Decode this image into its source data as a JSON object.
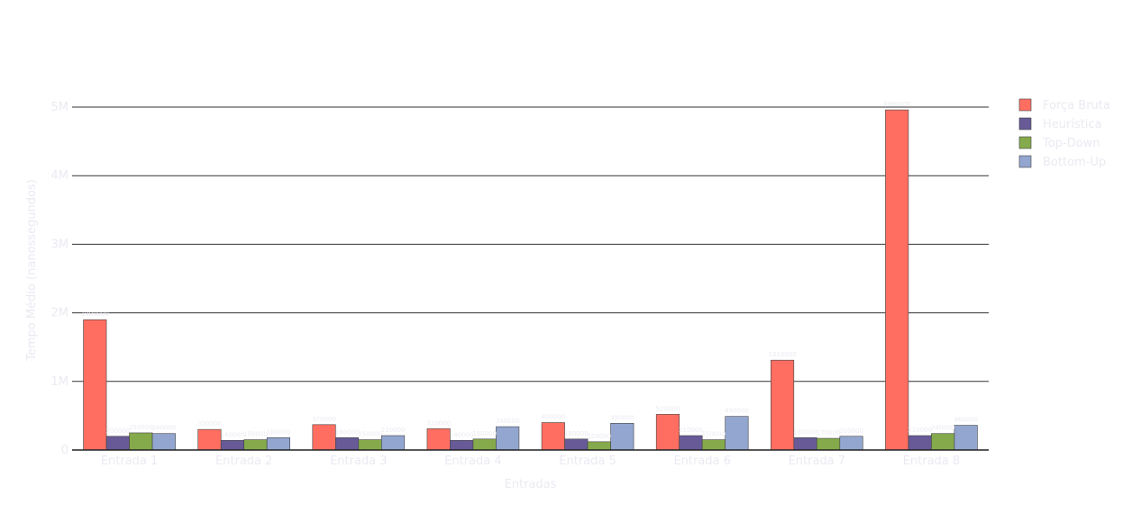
{
  "chart_data": {
    "type": "bar",
    "title": "",
    "xlabel": "Entradas",
    "ylabel": "Tempo Médio (nanossegundos)",
    "categories": [
      "Entrada 1",
      "Entrada 2",
      "Entrada 3",
      "Entrada 4",
      "Entrada 5",
      "Entrada 6",
      "Entrada 7",
      "Entrada 8"
    ],
    "ylim": [
      0,
      5250000
    ],
    "yticks": [
      {
        "value": 0,
        "label": "0"
      },
      {
        "value": 1000000,
        "label": "1M"
      },
      {
        "value": 2000000,
        "label": "2M"
      },
      {
        "value": 3000000,
        "label": "3M"
      },
      {
        "value": 4000000,
        "label": "4M"
      },
      {
        "value": 5000000,
        "label": "5M"
      }
    ],
    "grid": true,
    "legend_position": "top-right",
    "series": [
      {
        "name": "Força Bruta",
        "color": "#ff6e61",
        "values": [
          1900000,
          300000,
          370000,
          310000,
          400000,
          520000,
          1310000,
          4960000
        ]
      },
      {
        "name": "Heurística",
        "color": "#675a97",
        "values": [
          200000,
          140000,
          180000,
          140000,
          160000,
          210000,
          180000,
          210000
        ]
      },
      {
        "name": "Top-Down",
        "color": "#85aa4b",
        "values": [
          250000,
          150000,
          150000,
          160000,
          120000,
          150000,
          170000,
          240000
        ]
      },
      {
        "name": "Bottom-Up",
        "color": "#93a6d0",
        "values": [
          240000,
          180000,
          210000,
          340000,
          390000,
          490000,
          200000,
          360000
        ]
      }
    ]
  }
}
